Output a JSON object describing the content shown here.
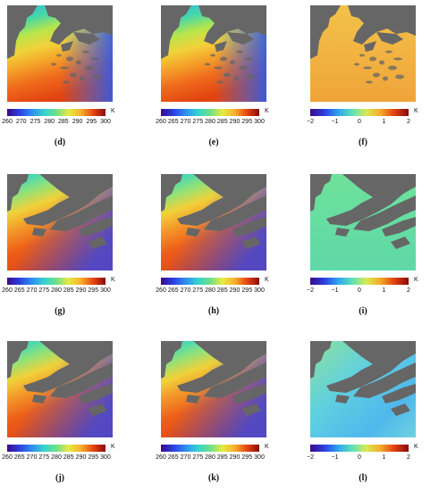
{
  "colors": {
    "land": "#666666",
    "temp_gradient": [
      "#3a0a8a",
      "#2c3fe0",
      "#2f8df0",
      "#34d2d0",
      "#6fe08a",
      "#e6ea44",
      "#f6b12a",
      "#e64512",
      "#8a0a0a"
    ],
    "diff_gradient": [
      "#3a0a8a",
      "#2c3fe0",
      "#2fa6f0",
      "#5fe0b8",
      "#d8ea52",
      "#f6a92a",
      "#e04010",
      "#8a0a0a"
    ]
  },
  "scales": {
    "temperature": {
      "unit": "K",
      "ticks": [
        "260",
        "265",
        "270",
        "275",
        "280",
        "285",
        "290",
        "295",
        "300"
      ]
    },
    "difference": {
      "unit": "K",
      "ticks": [
        "−2",
        "−1",
        "0",
        "1",
        "2"
      ]
    }
  },
  "panels": [
    {
      "caption": "(d)",
      "scale": "temperature",
      "scene": "korea-sst",
      "colorbar_ticks": [
        "260",
        "270",
        "275",
        "280",
        "285",
        "290",
        "295",
        "300"
      ]
    },
    {
      "caption": "(e)",
      "scale": "temperature",
      "scene": "korea-sst"
    },
    {
      "caption": "(f)",
      "scale": "difference",
      "scene": "korea-diff"
    },
    {
      "caption": "(g)",
      "scale": "temperature",
      "scene": "japan-sst"
    },
    {
      "caption": "(h)",
      "scale": "temperature",
      "scene": "japan-sst"
    },
    {
      "caption": "(i)",
      "scale": "difference",
      "scene": "japan-diff"
    },
    {
      "caption": "(j)",
      "scale": "temperature",
      "scene": "japan-sst"
    },
    {
      "caption": "(k)",
      "scale": "temperature",
      "scene": "japan-sst"
    },
    {
      "caption": "(l)",
      "scale": "difference",
      "scene": "japan-diff2"
    }
  ]
}
